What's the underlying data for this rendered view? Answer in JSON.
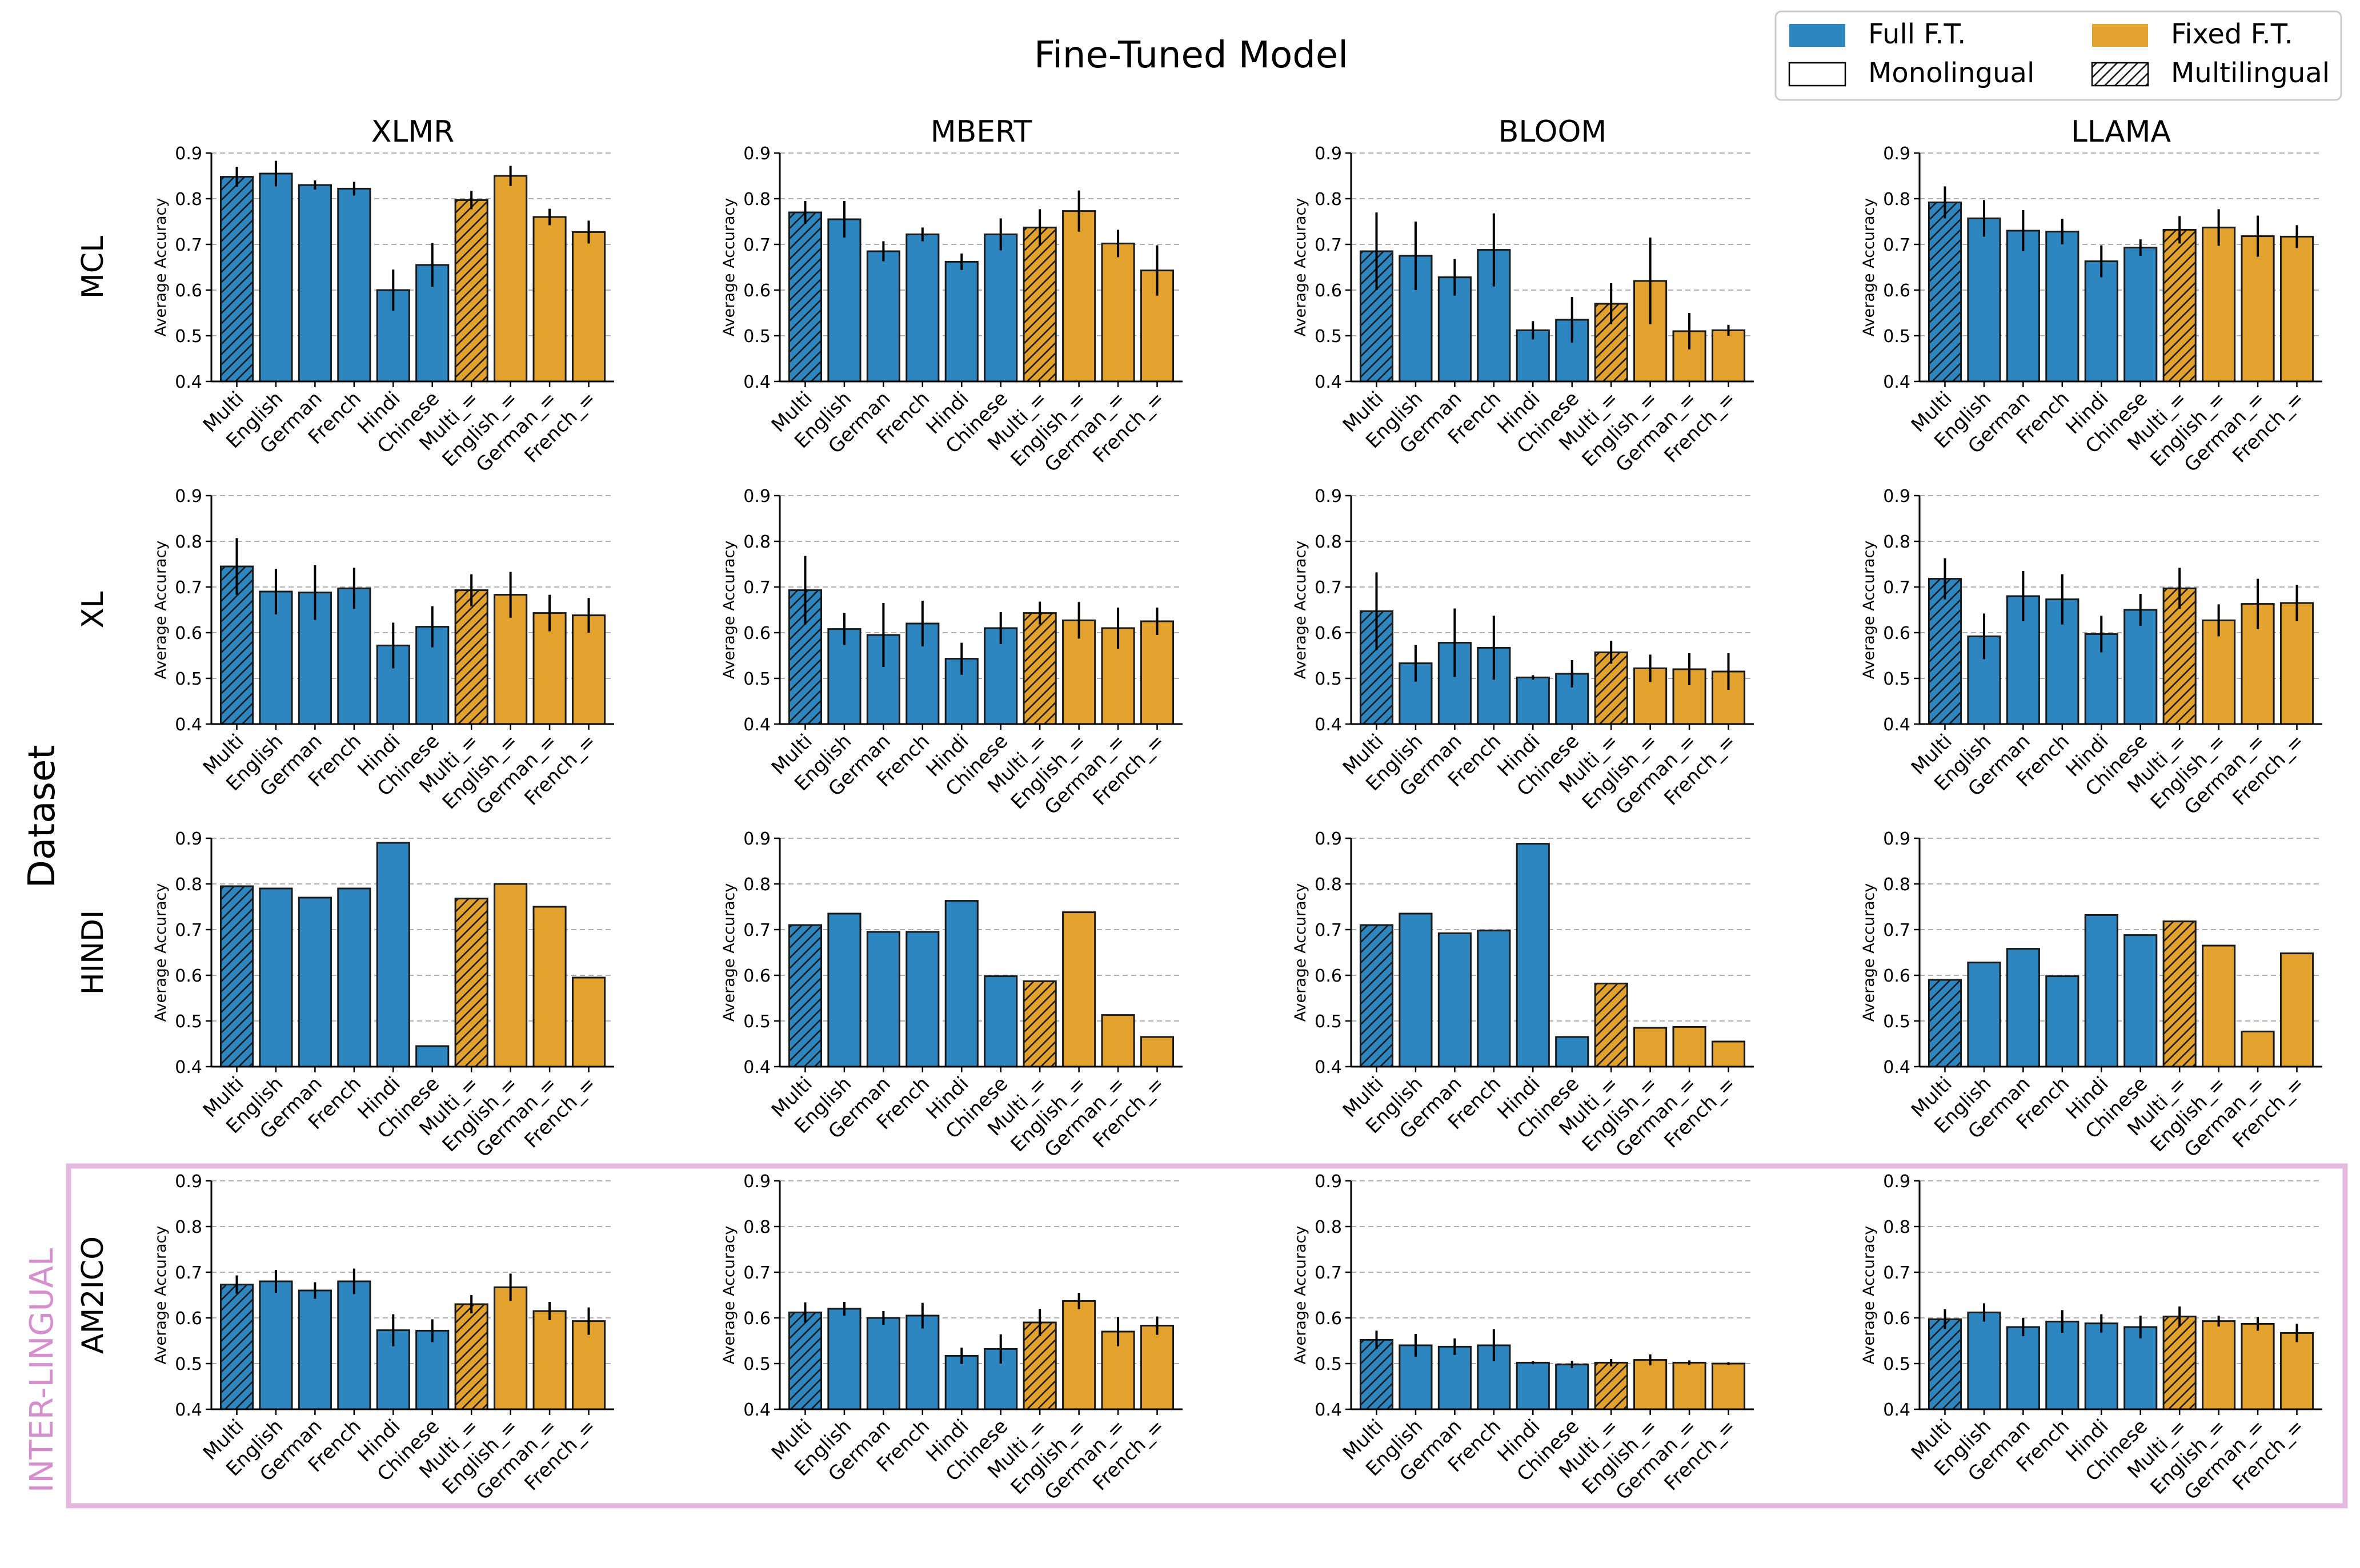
{
  "figure": {
    "title": "Fine-Tuned Model",
    "row_group_label": "Dataset",
    "highlight_label": "INTER-LINGUAL",
    "ylabel": "Average Accuracy",
    "highlight_color": "#e5b9df"
  },
  "legend": {
    "entries": [
      {
        "label": "Full F.T.",
        "kind": "fill",
        "color": "#2e86c1"
      },
      {
        "label": "Fixed F.T.",
        "kind": "fill",
        "color": "#e3a22e"
      },
      {
        "label": "Monolingual",
        "kind": "plain",
        "color": "#ffffff"
      },
      {
        "label": "Multilingual",
        "kind": "hatch",
        "color": "#ffffff"
      }
    ]
  },
  "colors": {
    "full": "#2e86c1",
    "fixed": "#e3a22e",
    "grid": "#b0b0b0"
  },
  "chart_data": {
    "type": "bar",
    "models": [
      "XLMR",
      "MBERT",
      "BLOOM",
      "LLAMA"
    ],
    "datasets": [
      "MCL",
      "XL",
      "HINDI",
      "AM2ICO"
    ],
    "categories": [
      "Multi",
      "English",
      "German",
      "French",
      "Hindi",
      "Chinese",
      "Multi_=",
      "English_=",
      "German_=",
      "French_="
    ],
    "group": [
      "full",
      "full",
      "full",
      "full",
      "full",
      "full",
      "fixed",
      "fixed",
      "fixed",
      "fixed"
    ],
    "hatched": [
      true,
      false,
      false,
      false,
      false,
      false,
      true,
      false,
      false,
      false
    ],
    "ylim": [
      0.4,
      0.9
    ],
    "yticks": [
      "0.4",
      "0.5",
      "0.6",
      "0.7",
      "0.8",
      "0.9"
    ],
    "grid": true,
    "panels": [
      [
        {
          "values": [
            0.848,
            0.855,
            0.83,
            0.822,
            0.6,
            0.655,
            0.797,
            0.85,
            0.76,
            0.727
          ],
          "errors": [
            0.022,
            0.028,
            0.01,
            0.015,
            0.045,
            0.048,
            0.02,
            0.022,
            0.018,
            0.025
          ]
        },
        {
          "values": [
            0.77,
            0.755,
            0.685,
            0.722,
            0.662,
            0.722,
            0.737,
            0.773,
            0.702,
            0.643
          ],
          "errors": [
            0.025,
            0.04,
            0.022,
            0.015,
            0.018,
            0.035,
            0.04,
            0.045,
            0.03,
            0.055
          ]
        },
        {
          "values": [
            0.685,
            0.675,
            0.628,
            0.688,
            0.512,
            0.535,
            0.57,
            0.62,
            0.51,
            0.512
          ],
          "errors": [
            0.085,
            0.075,
            0.04,
            0.08,
            0.02,
            0.05,
            0.045,
            0.095,
            0.04,
            0.012
          ]
        },
        {
          "values": [
            0.792,
            0.757,
            0.73,
            0.728,
            0.663,
            0.693,
            0.732,
            0.737,
            0.718,
            0.717
          ],
          "errors": [
            0.035,
            0.04,
            0.045,
            0.028,
            0.035,
            0.018,
            0.03,
            0.04,
            0.045,
            0.025
          ]
        }
      ],
      [
        {
          "values": [
            0.745,
            0.69,
            0.688,
            0.697,
            0.572,
            0.613,
            0.693,
            0.683,
            0.643,
            0.638
          ],
          "errors": [
            0.062,
            0.05,
            0.06,
            0.045,
            0.05,
            0.045,
            0.035,
            0.05,
            0.04,
            0.038
          ]
        },
        {
          "values": [
            0.693,
            0.608,
            0.595,
            0.62,
            0.543,
            0.61,
            0.643,
            0.627,
            0.61,
            0.625
          ],
          "errors": [
            0.075,
            0.035,
            0.07,
            0.05,
            0.035,
            0.035,
            0.025,
            0.04,
            0.045,
            0.03
          ]
        },
        {
          "values": [
            0.647,
            0.533,
            0.578,
            0.567,
            0.502,
            0.51,
            0.557,
            0.522,
            0.52,
            0.515
          ],
          "errors": [
            0.085,
            0.04,
            0.075,
            0.07,
            0.005,
            0.03,
            0.025,
            0.03,
            0.035,
            0.04
          ]
        },
        {
          "values": [
            0.718,
            0.592,
            0.68,
            0.673,
            0.597,
            0.65,
            0.697,
            0.627,
            0.663,
            0.665
          ],
          "errors": [
            0.045,
            0.05,
            0.055,
            0.055,
            0.04,
            0.035,
            0.045,
            0.035,
            0.055,
            0.04
          ]
        }
      ],
      [
        {
          "values": [
            0.795,
            0.79,
            0.77,
            0.79,
            0.89,
            0.445,
            0.768,
            0.8,
            0.75,
            0.595
          ],
          "errors": [
            0,
            0,
            0,
            0,
            0,
            0,
            0,
            0,
            0,
            0
          ]
        },
        {
          "values": [
            0.71,
            0.735,
            0.695,
            0.695,
            0.763,
            0.598,
            0.587,
            0.738,
            0.513,
            0.465
          ],
          "errors": [
            0,
            0,
            0,
            0,
            0,
            0,
            0,
            0,
            0,
            0
          ]
        },
        {
          "values": [
            0.71,
            0.735,
            0.692,
            0.698,
            0.888,
            0.465,
            0.582,
            0.485,
            0.487,
            0.455
          ],
          "errors": [
            0,
            0,
            0,
            0,
            0,
            0,
            0,
            0,
            0,
            0
          ]
        },
        {
          "values": [
            0.59,
            0.628,
            0.658,
            0.598,
            0.732,
            0.688,
            0.718,
            0.665,
            0.477,
            0.648
          ],
          "errors": [
            0,
            0,
            0,
            0,
            0,
            0,
            0,
            0,
            0,
            0
          ]
        }
      ],
      [
        {
          "values": [
            0.673,
            0.68,
            0.66,
            0.68,
            0.573,
            0.572,
            0.63,
            0.667,
            0.615,
            0.593
          ],
          "errors": [
            0.02,
            0.025,
            0.018,
            0.028,
            0.035,
            0.025,
            0.02,
            0.03,
            0.02,
            0.03
          ]
        },
        {
          "values": [
            0.612,
            0.62,
            0.6,
            0.605,
            0.517,
            0.532,
            0.59,
            0.637,
            0.57,
            0.583
          ],
          "errors": [
            0.022,
            0.015,
            0.015,
            0.028,
            0.018,
            0.032,
            0.03,
            0.018,
            0.032,
            0.02
          ]
        },
        {
          "values": [
            0.552,
            0.54,
            0.537,
            0.54,
            0.502,
            0.498,
            0.502,
            0.508,
            0.502,
            0.5
          ],
          "errors": [
            0.02,
            0.025,
            0.018,
            0.035,
            0.003,
            0.008,
            0.008,
            0.012,
            0.005,
            0.003
          ]
        },
        {
          "values": [
            0.597,
            0.612,
            0.58,
            0.592,
            0.588,
            0.58,
            0.603,
            0.593,
            0.587,
            0.567
          ],
          "errors": [
            0.022,
            0.02,
            0.02,
            0.025,
            0.02,
            0.025,
            0.022,
            0.012,
            0.015,
            0.02
          ]
        }
      ]
    ]
  }
}
